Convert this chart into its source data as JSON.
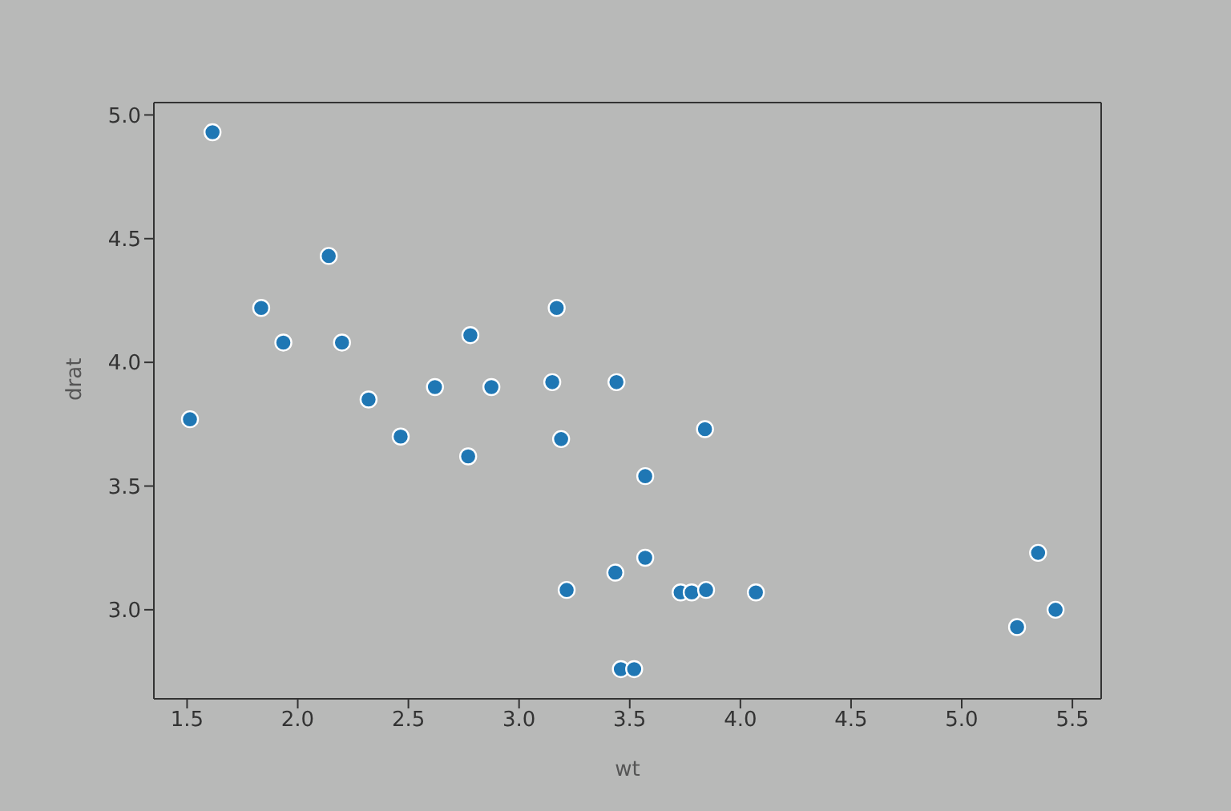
{
  "chart_data": {
    "type": "scatter",
    "xlabel": "wt",
    "ylabel": "drat",
    "marker": "circle",
    "legend": false,
    "xlim": [
      1.35,
      5.63
    ],
    "ylim": [
      2.64,
      5.05
    ],
    "xticks": [
      {
        "value": 1.5,
        "label": "1.5"
      },
      {
        "value": 2,
        "label": "2.0"
      },
      {
        "value": 2.5,
        "label": "2.5"
      },
      {
        "value": 3,
        "label": "3.0"
      },
      {
        "value": 3.5,
        "label": "3.5"
      },
      {
        "value": 4,
        "label": "4.0"
      },
      {
        "value": 4.5,
        "label": "4.5"
      },
      {
        "value": 5,
        "label": "5.0"
      },
      {
        "value": 5.5,
        "label": "5.5"
      }
    ],
    "yticks": [
      {
        "value": 3,
        "label": "3.0"
      },
      {
        "value": 3.5,
        "label": "3.5"
      },
      {
        "value": 4,
        "label": "4.0"
      },
      {
        "value": 4.5,
        "label": "4.5"
      },
      {
        "value": 5,
        "label": "5.0"
      }
    ],
    "series": [
      {
        "color": "#1f77b4",
        "x": [
          2.62,
          2.875,
          2.32,
          3.215,
          3.46,
          3.57,
          3.19,
          3.15,
          3.44,
          4.07,
          3.73,
          3.78,
          5.25,
          5.424,
          5.345,
          2.2,
          1.615,
          1.835,
          2.465,
          3.52,
          3.435,
          3.84,
          3.845,
          1.935,
          2.14,
          1.513,
          3.17,
          2.77,
          3.57,
          2.78
        ],
        "values": [
          3.9,
          3.9,
          3.85,
          3.08,
          2.76,
          3.21,
          3.69,
          3.92,
          3.92,
          3.07,
          3.07,
          3.07,
          2.93,
          3.0,
          3.23,
          4.08,
          4.93,
          4.22,
          3.7,
          2.76,
          3.15,
          3.73,
          3.08,
          4.08,
          4.43,
          3.77,
          4.22,
          3.62,
          3.54,
          4.11
        ]
      }
    ]
  }
}
